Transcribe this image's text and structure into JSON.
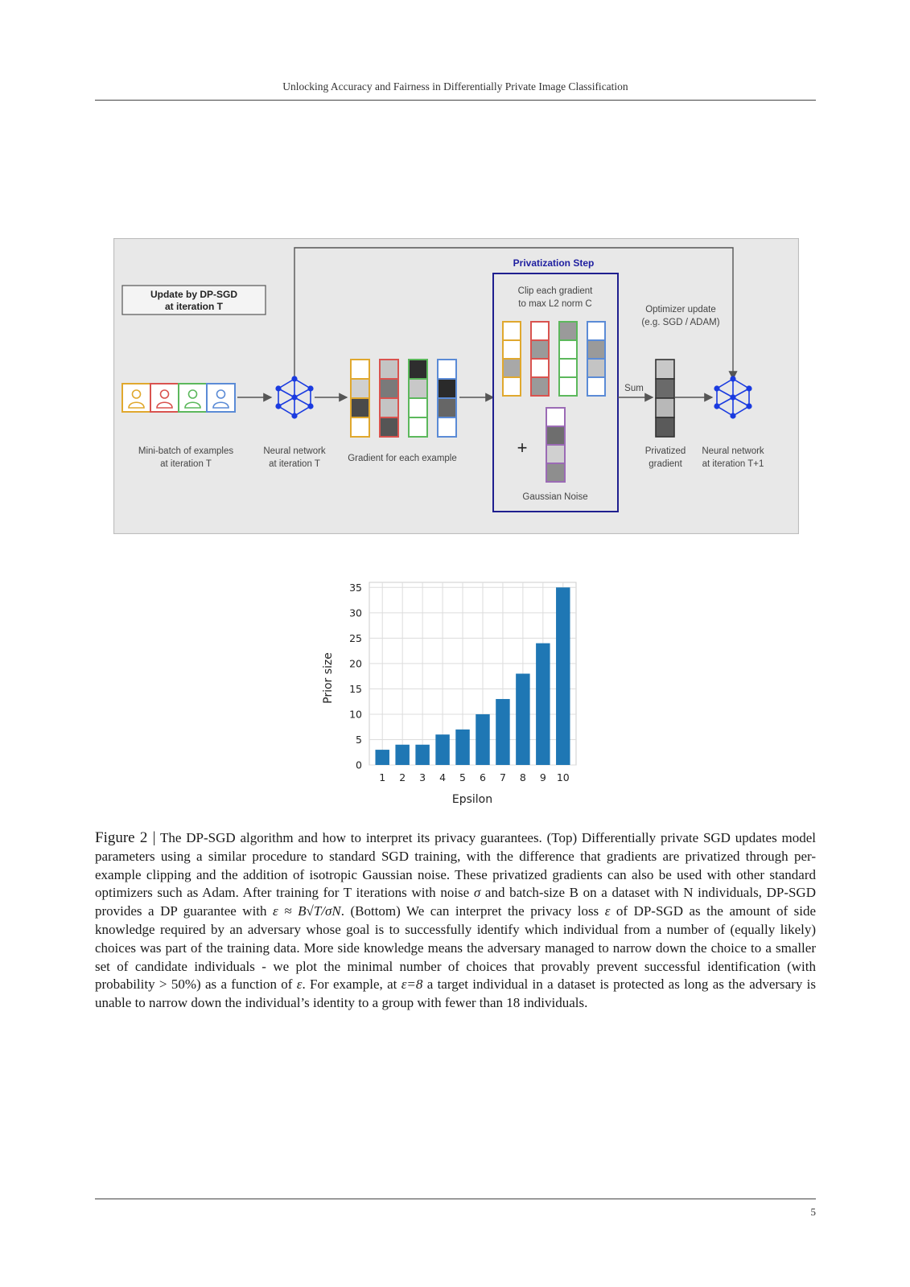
{
  "header": {
    "running_title": "Unlocking Accuracy and Fairness in Differentially Private Image Classification",
    "page_number": "5"
  },
  "diagram": {
    "update_box": {
      "line1": "Update by DP-SGD",
      "line2": "at iteration T"
    },
    "privatization_title": "Privatization Step",
    "clip_label": {
      "line1": "Clip each gradient",
      "line2": "to max L2 norm C"
    },
    "optimizer_label": {
      "line1": "Optimizer update",
      "line2": "(e.g. SGD / ADAM)"
    },
    "sum_label": "Sum",
    "plus_symbol": "+",
    "minibatch_label": {
      "line1": "Mini-batch of examples",
      "line2": "at iteration T"
    },
    "network_label": {
      "line1": "Neural network",
      "line2": "at iteration T"
    },
    "gradient_label": "Gradient for each example",
    "noise_label": "Gaussian Noise",
    "privatized_label": {
      "line1": "Privatized",
      "line2": "gradient"
    },
    "network_next_label": {
      "line1": "Neural network",
      "line2": "at iteration T+1"
    },
    "example_colors": [
      "#e0a82e",
      "#d9534f",
      "#5cb85c",
      "#5b8bd6"
    ],
    "noise_color": "#9b6bb5",
    "privatization_border_color": "#1f1f8f",
    "network_color": "#1a3be0"
  },
  "chart_data": {
    "type": "bar",
    "categories": [
      "1",
      "2",
      "3",
      "4",
      "5",
      "6",
      "7",
      "8",
      "9",
      "10"
    ],
    "values": [
      3,
      4,
      4,
      6,
      7,
      10,
      13,
      18,
      24,
      35
    ],
    "xlabel": "Epsilon",
    "ylabel": "Prior size",
    "ylim": [
      0,
      36
    ],
    "yticks": [
      0,
      5,
      10,
      15,
      20,
      25,
      30,
      35
    ],
    "grid": true,
    "bar_color": "#1f77b4"
  },
  "caption": {
    "label": "Figure 2 |",
    "s1": " The DP-SGD algorithm and how to interpret its privacy guarantees. (Top) Differentially private SGD updates model parameters using a similar procedure to standard SGD training, with the difference that gradients are privatized through per-example clipping and the addition of isotropic Gaussian noise. These privatized gradients can also be used with other standard optimizers such as Adam. After training for T iterations with noise ",
    "sigma": "σ",
    "s2": " and batch-size B on a dataset with N individuals, DP-SGD provides a DP guarantee with ",
    "formula": "ε ≈ B√T/σN",
    "s3": ". (Bottom) We can interpret the privacy loss ",
    "eps1": "ε",
    "s4": " of DP-SGD as the amount of side knowledge required by an adversary whose goal is to successfully identify which individual from a number of (equally likely) choices was part of the training data. More side knowledge means the adversary managed to narrow down the choice to a smaller set of candidate individuals - we plot the minimal number of choices that provably prevent successful identification (with probability > 50%) as a function of ",
    "eps2": "ε",
    "s5": ". For example, at ",
    "eps3": "ε=8",
    "s6": " a target individual in a dataset is protected as long as the adversary is unable to narrow down the individual’s identity to a group with fewer than 18 individuals."
  }
}
